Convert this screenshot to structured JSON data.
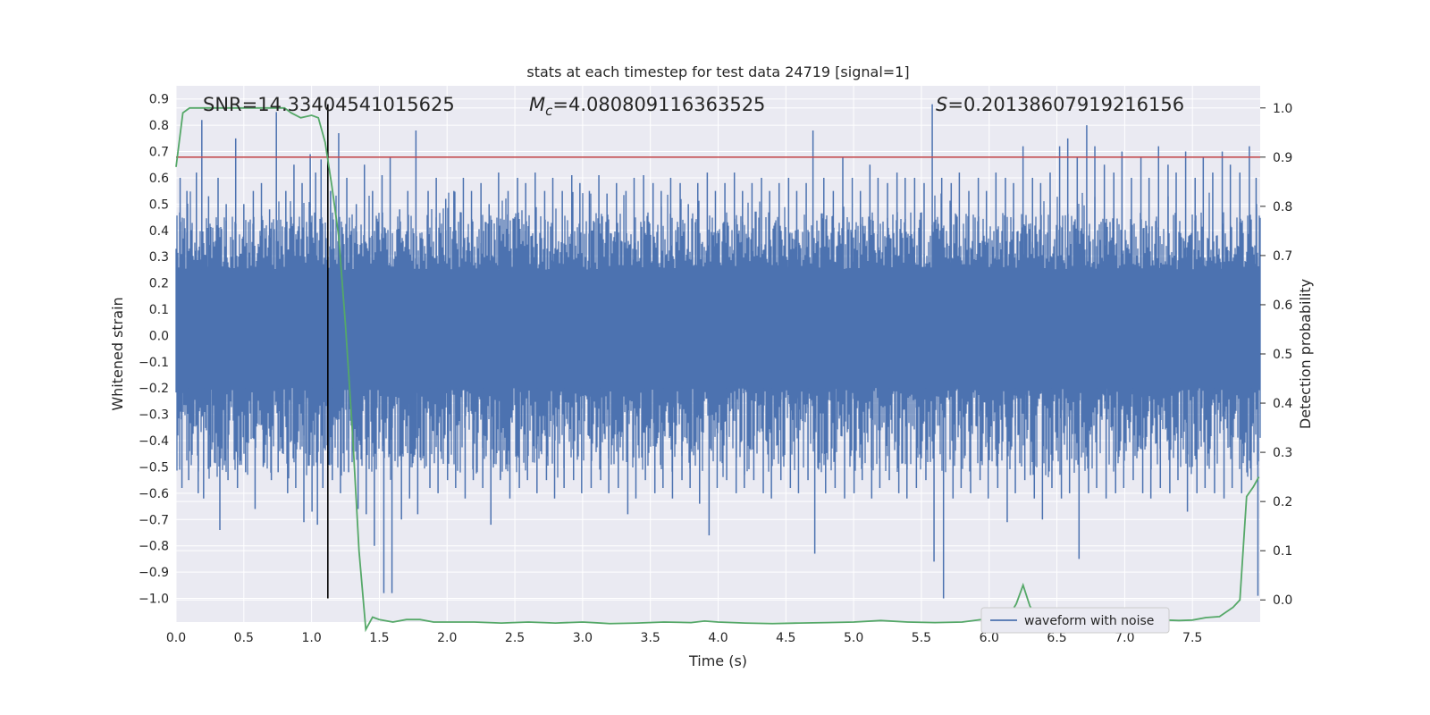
{
  "chart_data": {
    "type": "line",
    "title": "stats at each timestep for test data 24719 [signal=1]",
    "xlabel": "Time (s)",
    "ylabel": "Whitened strain",
    "y2label": "Detection probability",
    "xlim": [
      0.0,
      8.0
    ],
    "ylim": [
      -1.09,
      0.95
    ],
    "y2lim": [
      -0.045,
      1.045
    ],
    "x_ticks": [
      "0.0",
      "0.5",
      "1.0",
      "1.5",
      "2.0",
      "2.5",
      "3.0",
      "3.5",
      "4.0",
      "4.5",
      "5.0",
      "5.5",
      "6.0",
      "6.5",
      "7.0",
      "7.5"
    ],
    "y_ticks": [
      "0.9",
      "0.8",
      "0.7",
      "0.6",
      "0.5",
      "0.4",
      "0.3",
      "0.2",
      "0.1",
      "0.0",
      "-0.1",
      "-0.2",
      "-0.3",
      "-0.4",
      "-0.5",
      "-0.6",
      "-0.7",
      "-0.8",
      "-0.9",
      "-1.0"
    ],
    "y2_ticks": [
      "1.0",
      "0.9",
      "0.8",
      "0.7",
      "0.6",
      "0.5",
      "0.4",
      "0.3",
      "0.2",
      "0.1",
      "0.0"
    ],
    "grid": true,
    "legend": {
      "position": "bottom-right",
      "entries": [
        "waveform with noise"
      ]
    },
    "annotations": {
      "snr": "SNR=14.33404541015625",
      "mc_symbol": "M",
      "mc_sub": "c",
      "mc_value": "=4.080809116363525",
      "s_symbol": "S",
      "s_value": "=0.20138607919216156"
    },
    "threshold_y2": 0.9,
    "marker_x": 1.12,
    "waveform": {
      "name": "waveform with noise",
      "envelope_top": 0.3,
      "envelope_bottom": -0.25,
      "peaks_x": [
        0.03,
        0.08,
        0.15,
        0.19,
        0.24,
        0.31,
        0.37,
        0.44,
        0.5,
        0.57,
        0.63,
        0.69,
        0.74,
        0.81,
        0.87,
        0.93,
        0.99,
        1.03,
        1.07,
        1.14,
        1.2,
        1.26,
        1.33,
        1.39,
        1.45,
        1.52,
        1.58,
        1.65,
        1.71,
        1.77,
        1.86,
        1.92,
        1.99,
        2.05,
        2.12,
        2.18,
        2.25,
        2.31,
        2.38,
        2.45,
        2.52,
        2.58,
        2.65,
        2.72,
        2.78,
        2.85,
        2.92,
        2.98,
        3.05,
        3.12,
        3.18,
        3.25,
        3.32,
        3.38,
        3.45,
        3.52,
        3.58,
        3.65,
        3.72,
        3.78,
        3.85,
        3.92,
        3.98,
        4.05,
        4.12,
        4.18,
        4.25,
        4.32,
        4.38,
        4.45,
        4.52,
        4.58,
        4.65,
        4.7,
        4.78,
        4.85,
        4.92,
        4.99,
        5.05,
        5.12,
        5.18,
        5.25,
        5.32,
        5.38,
        5.45,
        5.52,
        5.58,
        5.65,
        5.72,
        5.78,
        5.85,
        5.92,
        5.98,
        6.05,
        6.12,
        6.18,
        6.25,
        6.32,
        6.38,
        6.45,
        6.52,
        6.58,
        6.65,
        6.72,
        6.78,
        6.85,
        6.92,
        6.98,
        7.05,
        7.12,
        7.18,
        7.25,
        7.32,
        7.38,
        7.45,
        7.52,
        7.58,
        7.65,
        7.72,
        7.78,
        7.85,
        7.92,
        7.97
      ],
      "peaks_top": [
        0.6,
        0.55,
        0.62,
        0.82,
        0.53,
        0.6,
        0.5,
        0.75,
        0.5,
        0.55,
        0.58,
        0.48,
        0.85,
        0.55,
        0.65,
        0.58,
        0.69,
        0.62,
        0.67,
        0.55,
        0.77,
        0.6,
        0.5,
        0.65,
        0.55,
        0.61,
        0.68,
        0.48,
        0.55,
        0.78,
        0.55,
        0.6,
        0.52,
        0.55,
        0.6,
        0.55,
        0.58,
        0.5,
        0.62,
        0.55,
        0.6,
        0.58,
        0.62,
        0.55,
        0.6,
        0.55,
        0.61,
        0.58,
        0.55,
        0.61,
        0.54,
        0.58,
        0.55,
        0.6,
        0.61,
        0.58,
        0.55,
        0.6,
        0.58,
        0.5,
        0.58,
        0.62,
        0.55,
        0.58,
        0.62,
        0.55,
        0.58,
        0.6,
        0.55,
        0.58,
        0.6,
        0.55,
        0.58,
        0.78,
        0.6,
        0.55,
        0.68,
        0.6,
        0.55,
        0.65,
        0.6,
        0.58,
        0.62,
        0.6,
        0.6,
        0.58,
        0.88,
        0.6,
        0.58,
        0.62,
        0.55,
        0.6,
        0.55,
        0.62,
        0.6,
        0.58,
        0.72,
        0.6,
        0.58,
        0.62,
        0.72,
        0.75,
        0.68,
        0.8,
        0.72,
        0.65,
        0.62,
        0.7,
        0.6,
        0.68,
        0.6,
        0.72,
        0.65,
        0.62,
        0.7,
        0.6,
        0.68,
        0.62,
        0.7,
        0.65,
        0.62,
        0.72,
        0.6
      ],
      "peaks_bottom": [
        -0.58,
        -0.55,
        -0.6,
        -0.62,
        -0.5,
        -0.74,
        -0.55,
        -0.58,
        -0.52,
        -0.66,
        -0.5,
        -0.55,
        -0.52,
        -0.6,
        -0.58,
        -0.71,
        -0.67,
        -0.72,
        -0.58,
        -0.55,
        -0.6,
        -0.52,
        -0.66,
        -0.68,
        -0.8,
        -0.98,
        -0.98,
        -0.7,
        -0.62,
        -0.68,
        -0.58,
        -0.6,
        -0.55,
        -0.58,
        -0.62,
        -0.55,
        -0.58,
        -0.72,
        -0.55,
        -0.62,
        -0.58,
        -0.55,
        -0.6,
        -0.55,
        -0.62,
        -0.58,
        -0.55,
        -0.6,
        -0.58,
        -0.55,
        -0.6,
        -0.58,
        -0.68,
        -0.62,
        -0.55,
        -0.6,
        -0.58,
        -0.62,
        -0.55,
        -0.58,
        -0.64,
        -0.76,
        -0.58,
        -0.55,
        -0.6,
        -0.58,
        -0.55,
        -0.6,
        -0.62,
        -0.55,
        -0.58,
        -0.6,
        -0.55,
        -0.83,
        -0.6,
        -0.58,
        -0.62,
        -0.6,
        -0.55,
        -0.62,
        -0.58,
        -0.55,
        -0.6,
        -0.62,
        -0.58,
        -0.55,
        -0.86,
        -1.0,
        -0.62,
        -0.58,
        -0.6,
        -0.55,
        -0.62,
        -0.58,
        -0.71,
        -0.6,
        -0.55,
        -0.62,
        -0.7,
        -0.58,
        -0.62,
        -0.6,
        -0.85,
        -0.6,
        -0.58,
        -0.62,
        -0.6,
        -0.58,
        -0.55,
        -0.6,
        -0.62,
        -0.58,
        -0.6,
        -0.55,
        -0.67,
        -0.6,
        -0.58,
        -0.6,
        -0.62,
        -0.58,
        -0.6,
        -0.55,
        -0.99
      ]
    },
    "probability": {
      "x": [
        0.0,
        0.05,
        0.1,
        0.2,
        0.3,
        0.4,
        0.5,
        0.6,
        0.7,
        0.8,
        0.85,
        0.92,
        1.0,
        1.05,
        1.1,
        1.15,
        1.2,
        1.25,
        1.3,
        1.35,
        1.4,
        1.45,
        1.5,
        1.6,
        1.7,
        1.8,
        1.9,
        2.0,
        2.2,
        2.4,
        2.6,
        2.8,
        3.0,
        3.2,
        3.4,
        3.6,
        3.8,
        3.9,
        4.0,
        4.2,
        4.4,
        4.6,
        4.8,
        5.0,
        5.2,
        5.4,
        5.6,
        5.8,
        6.0,
        6.1,
        6.15,
        6.2,
        6.25,
        6.3,
        6.35,
        6.4,
        6.5,
        6.6,
        6.8,
        7.0,
        7.2,
        7.4,
        7.5,
        7.6,
        7.7,
        7.8,
        7.85,
        7.9,
        7.95,
        7.99
      ],
      "y": [
        0.88,
        0.99,
        1.0,
        1.0,
        1.0,
        1.0,
        1.0,
        1.0,
        1.0,
        1.0,
        0.99,
        0.98,
        0.985,
        0.98,
        0.93,
        0.84,
        0.74,
        0.56,
        0.35,
        0.1,
        -0.06,
        -0.035,
        -0.04,
        -0.045,
        -0.04,
        -0.04,
        -0.045,
        -0.045,
        -0.045,
        -0.047,
        -0.045,
        -0.047,
        -0.045,
        -0.048,
        -0.047,
        -0.045,
        -0.046,
        -0.043,
        -0.045,
        -0.047,
        -0.048,
        -0.047,
        -0.046,
        -0.045,
        -0.042,
        -0.045,
        -0.046,
        -0.045,
        -0.038,
        -0.032,
        -0.031,
        -0.008,
        0.03,
        -0.012,
        -0.035,
        -0.038,
        -0.04,
        -0.045,
        -0.042,
        -0.043,
        -0.04,
        -0.042,
        -0.041,
        -0.036,
        -0.034,
        -0.015,
        0.0,
        0.21,
        0.23,
        0.25
      ]
    },
    "colors": {
      "waveform": "#4c72b0",
      "probability": "#55a868",
      "threshold": "#c44e52",
      "marker": "#000000",
      "plot_bg": "#eaeaf2",
      "grid": "#ffffff"
    }
  }
}
